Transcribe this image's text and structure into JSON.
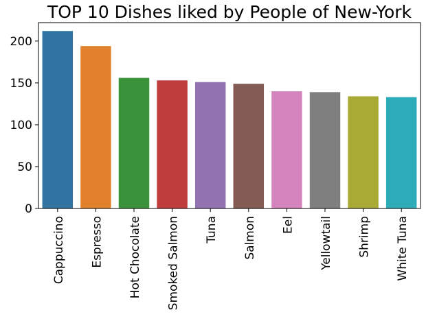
{
  "chart_data": {
    "type": "bar",
    "title": "TOP 10 Dishes liked by People of New-York",
    "xlabel": "",
    "ylabel": "",
    "categories": [
      "Cappuccino",
      "Espresso",
      "Hot Chocolate",
      "Smoked Salmon",
      "Tuna",
      "Salmon",
      "Eel",
      "Yellowtail",
      "Shrimp",
      "White Tuna"
    ],
    "values": [
      212,
      194,
      156,
      153,
      151,
      149,
      140,
      139,
      134,
      133
    ],
    "colors": [
      "#3274a1",
      "#e1812c",
      "#3a923a",
      "#c03d3e",
      "#9372b2",
      "#845b53",
      "#d684bd",
      "#7f7f7f",
      "#a9aa35",
      "#2eabb8"
    ],
    "ylim": [
      0,
      222
    ],
    "yticks": [
      0,
      50,
      100,
      150,
      200
    ],
    "grid": false,
    "legend": "none"
  }
}
